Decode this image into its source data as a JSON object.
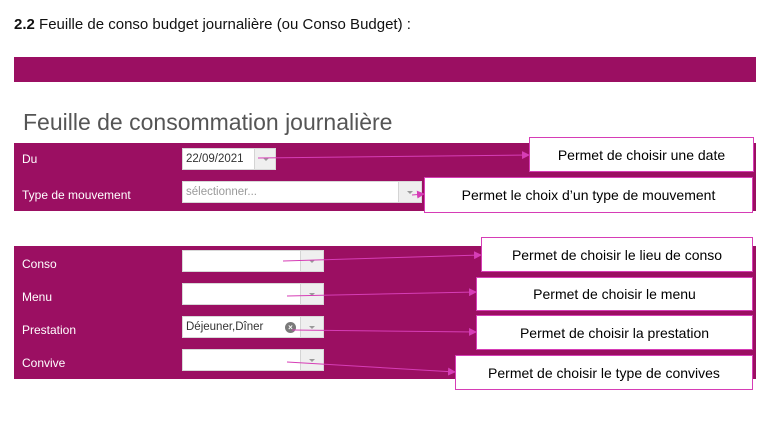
{
  "heading": {
    "number": "2.2",
    "text": "Feuille de conso budget journalière (ou Conso Budget) :"
  },
  "page_title": "Feuille de consommation journalière",
  "form1": {
    "date_label": "Du",
    "date_value": "22/09/2021",
    "movement_label": "Type de mouvement",
    "movement_placeholder": "sélectionner..."
  },
  "form2": {
    "conso_label": "Conso",
    "conso_value": "",
    "menu_label": "Menu",
    "menu_value": "",
    "prestation_label": "Prestation",
    "prestation_value": "Déjeuner,Dîner",
    "convive_label": "Convive",
    "convive_value": ""
  },
  "callouts": {
    "date": "Permet de choisir une date",
    "movement": "Permet le choix d’un type de mouvement",
    "conso": "Permet de choisir le lieu de conso",
    "menu": "Permet de choisir le menu",
    "prestation": "Permet de choisir la prestation",
    "convive": "Permet de choisir le type de convives"
  },
  "colors": {
    "brand": "#9b0f62",
    "callout_border": "#d63db6",
    "arrow": "#d63db6"
  },
  "icons": {
    "dropdown": "chevron-down-icon",
    "clear": "clear-icon"
  }
}
